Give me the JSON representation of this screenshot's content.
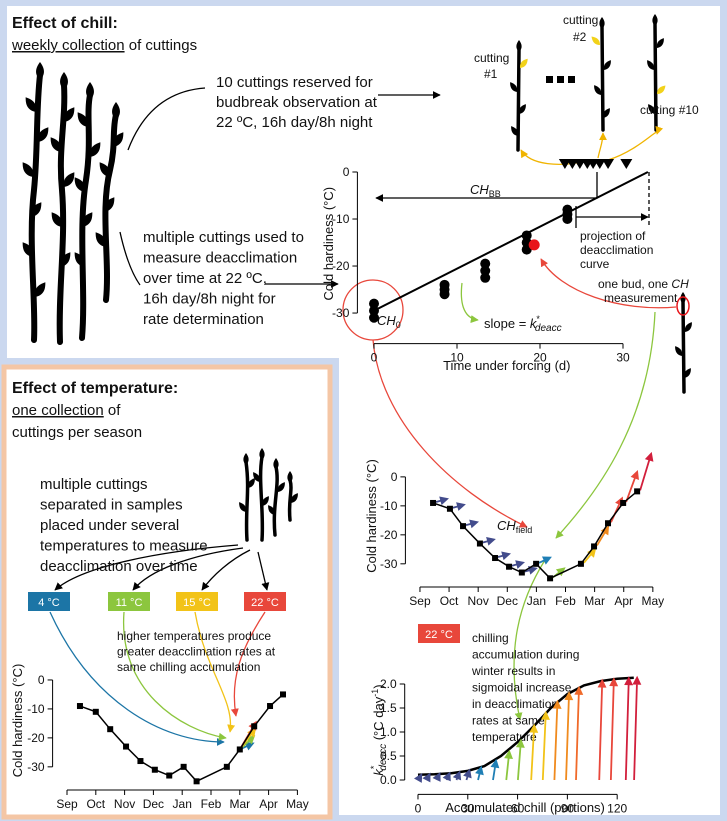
{
  "chill": {
    "title": "Effect of chill:",
    "subtitle": [
      "weekly collection",
      " of cuttings"
    ],
    "budbreak_note": [
      "10 cuttings reserved for",
      "budbreak observation at",
      "22 ºC, 16h day/8h night"
    ],
    "deacc_note": [
      "multiple cuttings used to",
      "measure deacclimation",
      "over time at 22 ºC,",
      "16h day/8h night for",
      "rate determination"
    ],
    "cutting_1": [
      "cutting",
      "#1"
    ],
    "cutting_2": [
      "cutting",
      "#2"
    ],
    "cutting_10": "cutting #10",
    "one_bud": [
      "one bud, one ",
      "CH",
      "measurement"
    ],
    "chart": {
      "type": "scatter",
      "xlabel": "Time under forcing (d)",
      "ylabel": "Cold hardiness (°C)",
      "xlim": [
        -2,
        34
      ],
      "ylim": [
        -36.5,
        6
      ],
      "xticks": [
        0,
        10,
        20,
        30
      ],
      "yticks": [
        -30,
        -20,
        -10,
        0
      ],
      "points": {
        "color": "#000000",
        "x": [
          0,
          0,
          0,
          8.5,
          8.5,
          8.5,
          13.4,
          13.4,
          13.4,
          18.4,
          18.4,
          18.4,
          23.3,
          23.3,
          23.3
        ],
        "values": [
          -28,
          -29.5,
          -31,
          -24,
          -25,
          -26,
          -19.5,
          -21,
          -22.5,
          -13.5,
          -15,
          -16.5,
          -8,
          -9,
          -10
        ]
      },
      "highlight": {
        "color": "#e8151b",
        "x": 19.3,
        "value": -15.5
      },
      "fit": {
        "color": "#000000",
        "x": [
          0,
          33
        ],
        "values": [
          -29.5,
          0
        ]
      },
      "budbreak": {
        "color": "#000000",
        "x": [
          23,
          23.9,
          24.8,
          25.7,
          26.4,
          27.2,
          28.2,
          30.4
        ],
        "values": [
          0,
          0,
          0,
          0,
          0,
          0,
          0,
          0
        ]
      },
      "ch_bb": [
        "CH",
        "BB"
      ],
      "projection": [
        "projection of",
        "deacclimation",
        "curve"
      ],
      "ch0": [
        "CH",
        "0"
      ],
      "slope": [
        "slope = ",
        "k",
        "*",
        "deacc"
      ]
    }
  },
  "temperature": {
    "title": "Effect of temperature:",
    "subtitle": [
      "one collection",
      " of",
      "cuttings per season"
    ],
    "note": [
      "multiple cuttings",
      "separated in samples",
      "placed under several",
      "temperatures to measure",
      "deacclimation over time"
    ],
    "boxes": [
      {
        "label": "4 °C",
        "color": "#1c75a6"
      },
      {
        "label": "11 °C",
        "color": "#8cc63e"
      },
      {
        "label": "15 °C",
        "color": "#f2c318"
      },
      {
        "label": "22 °C",
        "color": "#e8473b"
      }
    ],
    "effect_note": [
      "higher temperatures produce",
      "greater deacclimation rates at",
      "same chilling accumulation"
    ],
    "chart": {
      "type": "line",
      "ylabel": "Cold hardiness (°C)",
      "xlim": [
        -0.5,
        8.5
      ],
      "ylim": [
        -38,
        10
      ],
      "xticks": [
        {
          "value": 0,
          "label": "Sep"
        },
        {
          "value": 1,
          "label": "Oct"
        },
        {
          "value": 2,
          "label": "Nov"
        },
        {
          "value": 3,
          "label": "Dec"
        },
        {
          "value": 4,
          "label": "Jan"
        },
        {
          "value": 5,
          "label": "Feb"
        },
        {
          "value": 6,
          "label": "Mar"
        },
        {
          "value": 7,
          "label": "Apr"
        },
        {
          "value": 8,
          "label": "May"
        }
      ],
      "yticks": [
        -30,
        -20,
        -10,
        0
      ],
      "color": "#000000",
      "x": [
        0.45,
        1.0,
        1.5,
        2.05,
        2.55,
        3.05,
        3.55,
        4.05,
        4.5,
        5.55,
        6.0,
        6.5,
        7.05,
        7.5
      ],
      "values": [
        -9,
        -11,
        -17,
        -23,
        -28,
        -31,
        -33,
        -30,
        -35,
        -30,
        -24,
        -16,
        -9,
        -5
      ]
    }
  },
  "field": {
    "chart": {
      "type": "line",
      "ylabel": "Cold hardiness (°C)",
      "label": [
        "CH",
        "field"
      ],
      "xlim": [
        -0.5,
        8.5
      ],
      "ylim": [
        -38,
        11
      ],
      "xticks": [
        {
          "value": 0,
          "label": "Sep"
        },
        {
          "value": 1,
          "label": "Oct"
        },
        {
          "value": 2,
          "label": "Nov"
        },
        {
          "value": 3,
          "label": "Dec"
        },
        {
          "value": 4,
          "label": "Jan"
        },
        {
          "value": 5,
          "label": "Feb"
        },
        {
          "value": 6,
          "label": "Mar"
        },
        {
          "value": 7,
          "label": "Apr"
        },
        {
          "value": 8,
          "label": "May"
        }
      ],
      "yticks": [
        -30,
        -20,
        -10,
        0
      ],
      "color": "#000000",
      "x": [
        0.45,
        1.03,
        1.48,
        2.06,
        2.58,
        3.06,
        3.5,
        3.99,
        4.47,
        5.53,
        5.98,
        6.46,
        6.98,
        7.46
      ],
      "values": [
        -9,
        -11,
        -17,
        -23,
        -28,
        -31,
        -33,
        -30,
        -35,
        -30,
        -24,
        -16,
        -9,
        -5
      ],
      "arrow_colors": [
        "#434c8c",
        "#434c8c",
        "#434c8c",
        "#434c8c",
        "#434c8c",
        "#434c8c",
        "#434c8c",
        "#1f7fb5",
        "#8cc63e",
        "#f2c318",
        "#f08a1e",
        "#e8473b",
        "#e8473b",
        "#d21f3c"
      ]
    }
  },
  "rate": {
    "chart": {
      "type": "line",
      "xlabel": "Accumulated chill (portions)",
      "ylabel": [
        "k",
        "*",
        "deacc",
        " (°C day",
        "-1",
        ")"
      ],
      "temp": "22 °C",
      "temp_color": "#e8473b",
      "note": [
        "chilling",
        "accumulation during",
        "winter results in",
        "sigmoidal increase",
        "in deacclimation",
        "rates at same",
        "temperature"
      ],
      "xlim": [
        -8,
        137
      ],
      "ylim": [
        -0.3,
        2.4
      ],
      "xticks": [
        0,
        30,
        60,
        90,
        120
      ],
      "yticks": [
        {
          "value": 0,
          "label": "0.0"
        },
        {
          "value": 0.5,
          "label": "0.5"
        },
        {
          "value": 1,
          "label": "1.0"
        },
        {
          "value": 1.5,
          "label": "1.5"
        },
        {
          "value": 2,
          "label": "2.0"
        }
      ],
      "curve": {
        "color": "#000000",
        "x": [
          0,
          10,
          20,
          30,
          40,
          50,
          60,
          70,
          80,
          90,
          100,
          110,
          120,
          130
        ],
        "values": [
          0.11,
          0.12,
          0.14,
          0.19,
          0.29,
          0.5,
          0.79,
          1.13,
          1.5,
          1.79,
          1.97,
          2.06,
          2.11,
          2.13
        ]
      },
      "arrows": {
        "x": [
          2,
          7,
          13,
          19,
          25,
          31,
          38,
          47,
          55,
          62,
          70,
          77,
          84,
          91,
          97,
          111,
          118,
          127,
          132
        ],
        "values": [
          0.11,
          0.12,
          0.13,
          0.14,
          0.16,
          0.2,
          0.26,
          0.4,
          0.59,
          0.82,
          1.13,
          1.4,
          1.63,
          1.81,
          1.92,
          2.07,
          2.1,
          2.12,
          2.13
        ],
        "colors": [
          "#434c8c",
          "#434c8c",
          "#434c8c",
          "#434c8c",
          "#434c8c",
          "#434c8c",
          "#1f7fb5",
          "#1f7fb5",
          "#8cc63e",
          "#8cc63e",
          "#f2c318",
          "#f2c318",
          "#f08a1e",
          "#f08a1e",
          "#f06a2a",
          "#e8473b",
          "#e8473b",
          "#d21f3c",
          "#d21f3c"
        ]
      }
    }
  }
}
